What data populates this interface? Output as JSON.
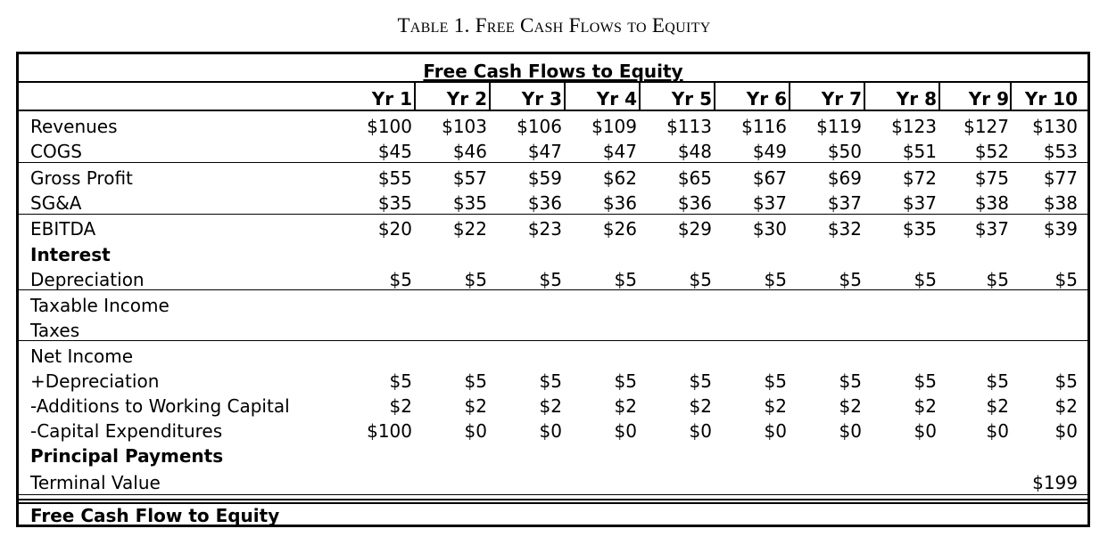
{
  "caption": "Table 1. Free Cash Flows to Equity",
  "table": {
    "title": "Free Cash Flows to Equity",
    "years": [
      "Yr 1",
      "Yr 2",
      "Yr 3",
      "Yr 4",
      "Yr 5",
      "Yr 6",
      "Yr 7",
      "Yr 8",
      "Yr 9",
      "Yr 10"
    ],
    "rows": [
      {
        "label": "Revenues",
        "bold": false,
        "values": [
          "$100",
          "$103",
          "$106",
          "$109",
          "$113",
          "$116",
          "$119",
          "$123",
          "$127",
          "$130"
        ]
      },
      {
        "label": "COGS",
        "bold": false,
        "values": [
          "$45",
          "$46",
          "$47",
          "$47",
          "$48",
          "$49",
          "$50",
          "$51",
          "$52",
          "$53"
        ]
      },
      {
        "label": "Gross Profit",
        "bold": false,
        "values": [
          "$55",
          "$57",
          "$59",
          "$62",
          "$65",
          "$67",
          "$69",
          "$72",
          "$75",
          "$77"
        ]
      },
      {
        "label": "SG&A",
        "bold": false,
        "values": [
          "$35",
          "$35",
          "$36",
          "$36",
          "$36",
          "$37",
          "$37",
          "$37",
          "$38",
          "$38"
        ]
      },
      {
        "label": "EBITDA",
        "bold": false,
        "values": [
          "$20",
          "$22",
          "$23",
          "$26",
          "$29",
          "$30",
          "$32",
          "$35",
          "$37",
          "$39"
        ]
      },
      {
        "label": "Interest",
        "bold": true,
        "values": [
          "",
          "",
          "",
          "",
          "",
          "",
          "",
          "",
          "",
          ""
        ]
      },
      {
        "label": "Depreciation",
        "bold": false,
        "values": [
          "$5",
          "$5",
          "$5",
          "$5",
          "$5",
          "$5",
          "$5",
          "$5",
          "$5",
          "$5"
        ]
      },
      {
        "label": "Taxable Income",
        "bold": false,
        "values": [
          "",
          "",
          "",
          "",
          "",
          "",
          "",
          "",
          "",
          ""
        ]
      },
      {
        "label": "Taxes",
        "bold": false,
        "values": [
          "",
          "",
          "",
          "",
          "",
          "",
          "",
          "",
          "",
          ""
        ]
      },
      {
        "label": "Net Income",
        "bold": false,
        "values": [
          "",
          "",
          "",
          "",
          "",
          "",
          "",
          "",
          "",
          ""
        ]
      },
      {
        "label": "+Depreciation",
        "bold": false,
        "values": [
          "$5",
          "$5",
          "$5",
          "$5",
          "$5",
          "$5",
          "$5",
          "$5",
          "$5",
          "$5"
        ]
      },
      {
        "label": "-Additions to Working Capital",
        "bold": false,
        "values": [
          "$2",
          "$2",
          "$2",
          "$2",
          "$2",
          "$2",
          "$2",
          "$2",
          "$2",
          "$2"
        ]
      },
      {
        "label": "-Capital Expenditures",
        "bold": false,
        "values": [
          "$100",
          "$0",
          "$0",
          "$0",
          "$0",
          "$0",
          "$0",
          "$0",
          "$0",
          "$0"
        ]
      },
      {
        "label": "Principal Payments",
        "bold": true,
        "values": [
          "",
          "",
          "",
          "",
          "",
          "",
          "",
          "",
          "",
          ""
        ]
      },
      {
        "label": "Terminal Value",
        "bold": false,
        "values": [
          "",
          "",
          "",
          "",
          "",
          "",
          "",
          "",
          "",
          "$199"
        ]
      }
    ],
    "footer_label": "Free Cash Flow to Equity"
  }
}
